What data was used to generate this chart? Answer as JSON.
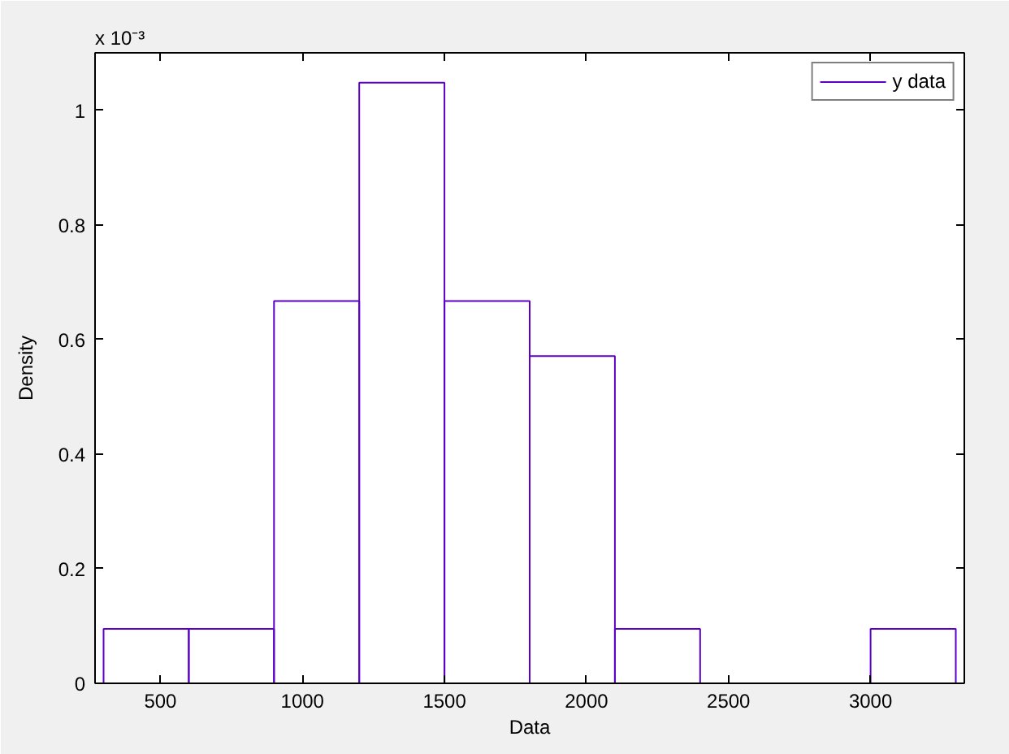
{
  "chart_data": {
    "type": "histogram",
    "xlabel": "Data",
    "ylabel": "Density",
    "annotations": [
      "x 10⁻³"
    ],
    "bins": [
      300,
      600,
      900,
      1200,
      1500,
      1800,
      2100,
      2400,
      2700,
      3000,
      3300
    ],
    "series": [
      {
        "name": "y data",
        "color": "#5c00c8",
        "values": [
          0.095,
          0.095,
          0.667,
          1.048,
          0.667,
          0.571,
          0.095,
          0,
          0,
          0.095
        ]
      }
    ],
    "xlim": [
      270,
      3330
    ],
    "ylim": [
      0,
      1.1
    ],
    "xticks": [
      500,
      1000,
      1500,
      2000,
      2500,
      3000
    ],
    "yticks": [
      0,
      0.2,
      0.4,
      0.6,
      0.8,
      1
    ],
    "legend": "top right"
  }
}
